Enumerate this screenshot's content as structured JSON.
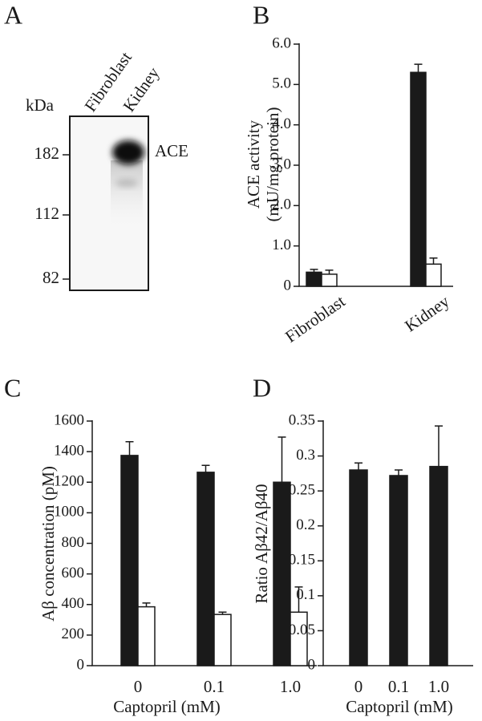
{
  "blot": {
    "panel": "A",
    "unit": "kDa",
    "lanes": [
      "Fibroblast",
      "Kidney"
    ],
    "markers": [
      "182",
      "112",
      "82"
    ],
    "band_label": "ACE"
  },
  "chart_data": [
    {
      "type": "bar",
      "panel": "B",
      "ylabel": [
        "ACE activity",
        "(mU/mg protein)"
      ],
      "categories": [
        "Fibroblast",
        "Kidney"
      ],
      "series": [
        {
          "color": "#1a1a1a",
          "values": [
            0.35,
            5.3
          ],
          "errors": [
            0.07,
            0.2
          ]
        },
        {
          "color": "#ffffff",
          "values": [
            0.3,
            0.55
          ],
          "errors": [
            0.1,
            0.15
          ]
        }
      ],
      "ylim": [
        0,
        6
      ],
      "yticks": [
        0,
        {
          "value": 1,
          "label": "1.0"
        },
        {
          "value": 2,
          "label": "2.0"
        },
        {
          "value": 3,
          "label": "3.0"
        },
        {
          "value": 4,
          "label": "4.0"
        },
        {
          "value": 5,
          "label": "5.0"
        },
        {
          "value": 6,
          "label": "6.0"
        }
      ]
    },
    {
      "type": "bar",
      "panel": "C",
      "ylabel": "Aβ concentration (pM)",
      "xlabel": "Captopril (mM)",
      "categories": [
        "0",
        "0.1",
        "1.0"
      ],
      "series": [
        {
          "color": "#1a1a1a",
          "values": [
            1375,
            1265,
            1200
          ],
          "errors": [
            90,
            45,
            295
          ]
        },
        {
          "color": "#ffffff",
          "values": [
            385,
            335,
            350
          ],
          "errors": [
            25,
            15,
            165
          ]
        }
      ],
      "ylim": [
        0,
        1600
      ],
      "yticks": [
        0,
        200,
        400,
        600,
        800,
        1000,
        1200,
        1400,
        1600
      ]
    },
    {
      "type": "bar",
      "panel": "D",
      "ylabel": "Ratio Aβ42/Aβ40",
      "xlabel": "Captopril (mM)",
      "categories": [
        "0",
        "0.1",
        "1.0"
      ],
      "series": [
        {
          "color": "#1a1a1a",
          "values": [
            0.28,
            0.272,
            0.285
          ],
          "errors": [
            0.01,
            0.008,
            0.058
          ]
        }
      ],
      "ylim": [
        0,
        0.35
      ],
      "yticks": [
        0,
        0.05,
        0.1,
        0.15,
        0.2,
        0.25,
        0.3,
        0.35
      ]
    }
  ]
}
